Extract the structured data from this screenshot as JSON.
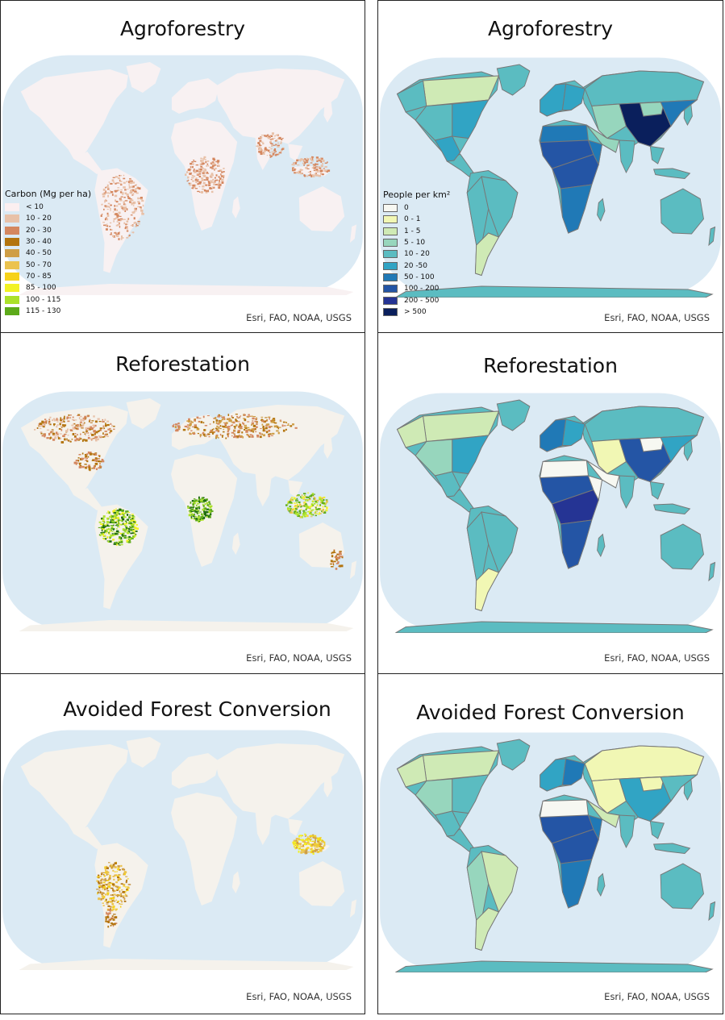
{
  "panels": {
    "carbon_agro": {
      "title": "Agroforestry",
      "attribution": "Esri, FAO, NOAA, USGS"
    },
    "people_agro": {
      "title": "Agroforestry",
      "attribution": "Esri, FAO, NOAA, USGS"
    },
    "carbon_refor": {
      "title": "Reforestation",
      "attribution": "Esri, FAO, NOAA, USGS"
    },
    "people_refor": {
      "title": "Reforestation",
      "attribution": "Esri, FAO, NOAA, USGS"
    },
    "carbon_afc": {
      "title": "Avoided Forest Conversion",
      "attribution": "Esri, FAO, NOAA, USGS"
    },
    "people_afc": {
      "title": "Avoided Forest Conversion",
      "attribution": "Esri, FAO, NOAA, USGS"
    }
  },
  "carbon_legend": {
    "title": "Carbon (Mg per ha)",
    "classes": [
      {
        "label": "< 10",
        "color": "#fbeff0"
      },
      {
        "label": "10 - 20",
        "color": "#e8c1a8"
      },
      {
        "label": "20 - 30",
        "color": "#d4875f"
      },
      {
        "label": "30 - 40",
        "color": "#b3740e"
      },
      {
        "label": "40 - 50",
        "color": "#cf9e45"
      },
      {
        "label": "50 - 70",
        "color": "#ebc34e"
      },
      {
        "label": "70 - 85",
        "color": "#f6d21a"
      },
      {
        "label": "85 - 100",
        "color": "#f2f223"
      },
      {
        "label": "100 - 115",
        "color": "#abe12a"
      },
      {
        "label": "115 - 130",
        "color": "#5daa1a"
      }
    ]
  },
  "people_legend": {
    "title": "People per km²",
    "classes": [
      {
        "label": "0",
        "color": "#f7f8f2"
      },
      {
        "label": "0 - 1",
        "color": "#f1f7b4"
      },
      {
        "label": "1 - 5",
        "color": "#cfeab5"
      },
      {
        "label": "5 - 10",
        "color": "#97d6bd"
      },
      {
        "label": "10 - 20",
        "color": "#5bbcc1"
      },
      {
        "label": "20 -50",
        "color": "#31a4c4"
      },
      {
        "label": "50 - 100",
        "color": "#2079b6"
      },
      {
        "label": "100 - 200",
        "color": "#2455a5"
      },
      {
        "label": "200 - 500",
        "color": "#253494"
      },
      {
        "label": "> 500",
        "color": "#0a1f5c"
      }
    ]
  },
  "map_colors": {
    "ocean": "#dbeaf4",
    "land": "#f5f2ec",
    "border": "#777777"
  }
}
